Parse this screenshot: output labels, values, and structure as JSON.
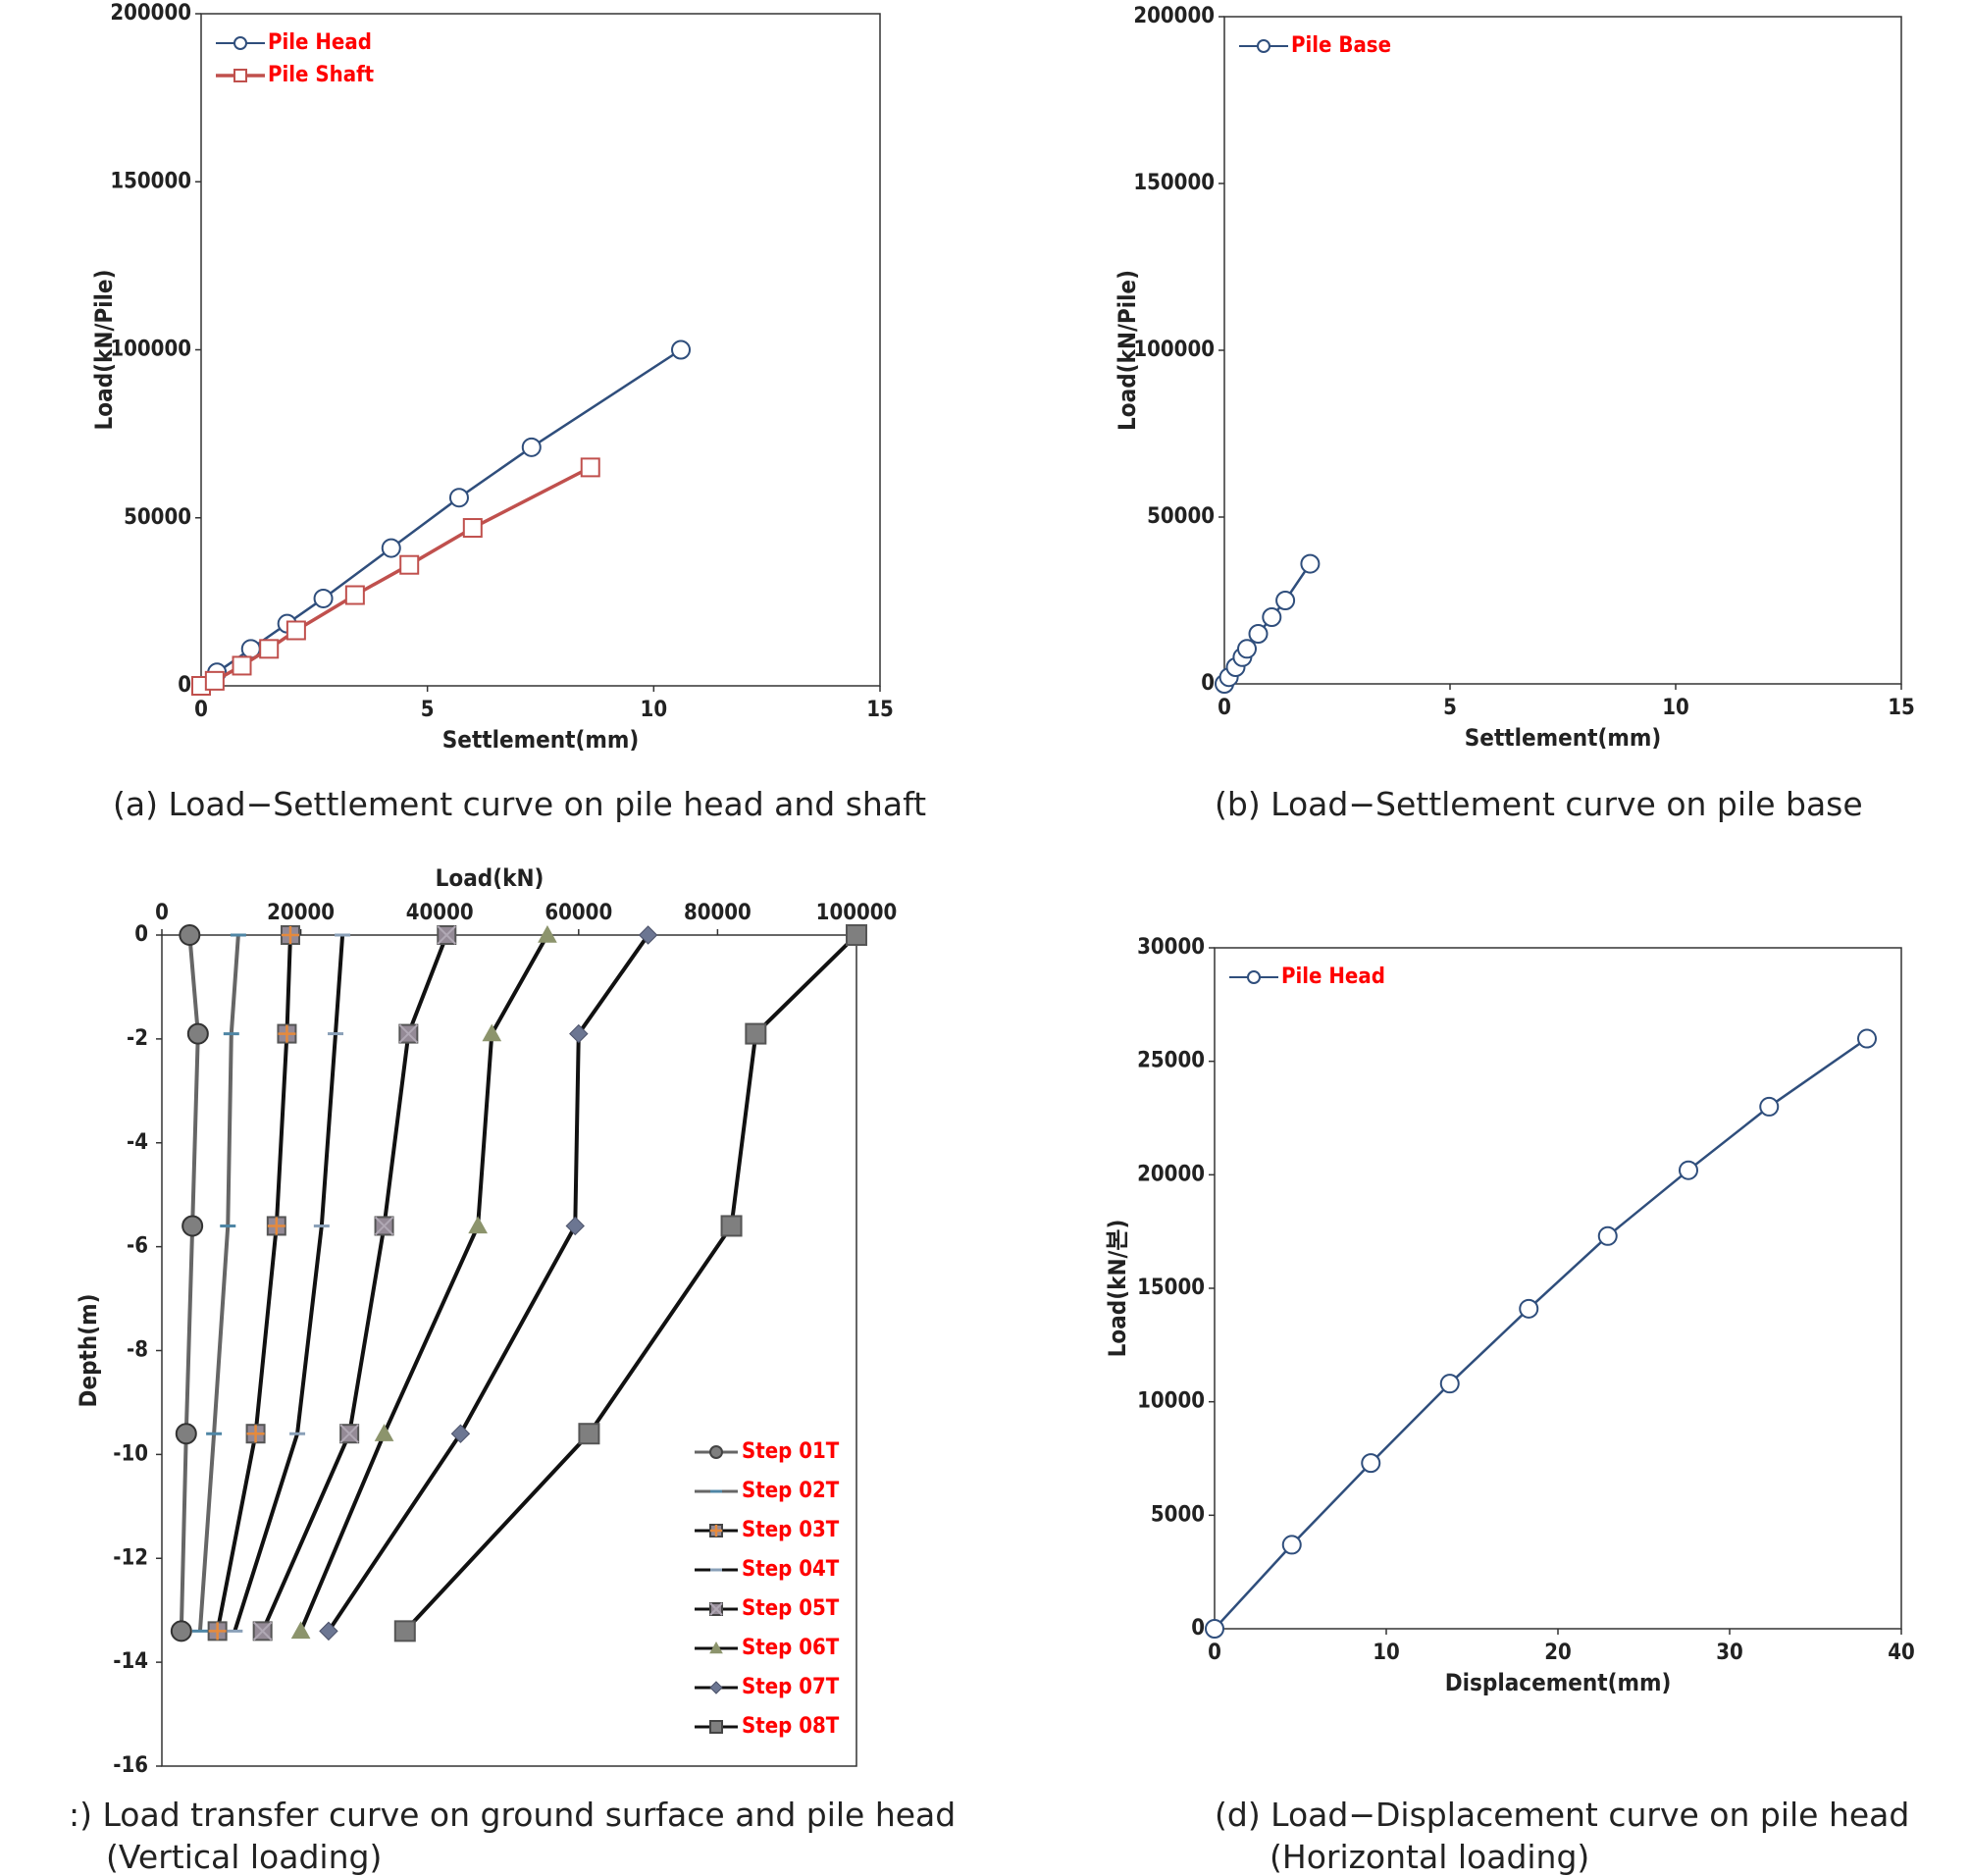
{
  "colors": {
    "blue": "#2f4e7c",
    "red_line": "#c0504d",
    "legend_text": "#ff0000",
    "dark": "#222222",
    "gray_line": "#666666",
    "marker_gray": "#7f7f7f",
    "marker_mauve": "#948a96",
    "marker_olive": "#8c946c",
    "marker_slate": "#6c7692",
    "marker_orange": "#e68a3c",
    "teal": "#4f86a5"
  },
  "captions": {
    "a": "(a) Load−Settlement curve on pile head and shaft",
    "b": "(b) Load−Settlement curve on pile base",
    "c1": ":) Load transfer curve on ground surface and pile head",
    "c2": "(Vertical loading)",
    "d1": "(d) Load−Displacement curve on pile head",
    "d2": "(Horizontal loading)"
  },
  "chart_data": [
    {
      "type": "line",
      "xlabel": "Settlement(mm)",
      "ylabel": "Load(kN/Pile)",
      "xlim": [
        0,
        15
      ],
      "ylim": [
        0,
        200000
      ],
      "xticks": [
        "0",
        "5",
        "10",
        "15"
      ],
      "yticks": [
        "0",
        "50000",
        "100000",
        "150000",
        "200000"
      ],
      "legend_position": "top-left",
      "series": [
        {
          "name": "Pile Head",
          "marker": "circle",
          "color": "#2f4e7c",
          "x": [
            0,
            0.35,
            1.1,
            1.9,
            2.7,
            4.2,
            5.7,
            7.3,
            10.6
          ],
          "y": [
            0,
            4000,
            11000,
            18500,
            26000,
            41000,
            56000,
            71000,
            100000
          ]
        },
        {
          "name": "Pile Shaft",
          "marker": "square",
          "color": "#c0504d",
          "x": [
            0,
            0.3,
            0.9,
            1.5,
            2.1,
            3.4,
            4.6,
            6.0,
            8.6
          ],
          "y": [
            0,
            1500,
            6000,
            11000,
            16500,
            27000,
            36000,
            47000,
            65000
          ]
        }
      ]
    },
    {
      "type": "line",
      "xlabel": "Settlement(mm)",
      "ylabel": "Load(kN/Pile)",
      "xlim": [
        0,
        15
      ],
      "ylim": [
        0,
        200000
      ],
      "xticks": [
        "0",
        "5",
        "10",
        "15"
      ],
      "yticks": [
        "0",
        "50000",
        "100000",
        "150000",
        "200000"
      ],
      "legend_position": "top-left",
      "series": [
        {
          "name": "Pile Base",
          "marker": "circle",
          "color": "#2f4e7c",
          "x": [
            0,
            0.1,
            0.25,
            0.4,
            0.5,
            0.75,
            1.05,
            1.35,
            1.9
          ],
          "y": [
            0,
            2000,
            5000,
            8000,
            10500,
            15000,
            20000,
            25000,
            36000
          ]
        }
      ]
    },
    {
      "type": "line",
      "xlabel": "Load(kN)",
      "ylabel": "Depth(m)",
      "xlim": [
        0,
        100000
      ],
      "ylim": [
        -16,
        0
      ],
      "xticks": [
        "0",
        "20000",
        "40000",
        "60000",
        "80000",
        "100000"
      ],
      "yticks": [
        "0",
        "-2",
        "-4",
        "-6",
        "-8",
        "-10",
        "-12",
        "-14",
        "-16"
      ],
      "legend_position": "bottom-right",
      "depths": [
        0,
        -1.9,
        -5.6,
        -9.6,
        -13.4
      ],
      "series": [
        {
          "name": "Step 01T",
          "marker": "circle",
          "color": "#666666",
          "fill": "#7f7f7f",
          "x": [
            4000,
            5200,
            4400,
            3500,
            2800
          ]
        },
        {
          "name": "Step 02T",
          "marker": "dash",
          "color": "#666666",
          "fill": "#4f86a5",
          "x": [
            11000,
            10000,
            9500,
            7500,
            5500
          ]
        },
        {
          "name": "Step 03T",
          "marker": "squareplus",
          "color": "#111111",
          "fill": "#948a96",
          "x": [
            18500,
            18000,
            16500,
            13500,
            8000
          ]
        },
        {
          "name": "Step 04T",
          "marker": "dash",
          "color": "#111111",
          "fill": "#8aa0b8",
          "x": [
            26000,
            25000,
            23000,
            19500,
            10500
          ]
        },
        {
          "name": "Step 05T",
          "marker": "squarex",
          "color": "#111111",
          "fill": "#948a96",
          "x": [
            41000,
            35500,
            32000,
            27000,
            14500
          ]
        },
        {
          "name": "Step 06T",
          "marker": "triangle",
          "color": "#111111",
          "fill": "#8c946c",
          "x": [
            55500,
            47500,
            45500,
            32000,
            20000
          ]
        },
        {
          "name": "Step 07T",
          "marker": "diamond",
          "color": "#111111",
          "fill": "#6c7692",
          "x": [
            70000,
            60000,
            59500,
            43000,
            24000
          ]
        },
        {
          "name": "Step 08T",
          "marker": "square",
          "color": "#111111",
          "fill": "#7f7f7f",
          "x": [
            100000,
            85500,
            82000,
            61500,
            35000
          ]
        }
      ]
    },
    {
      "type": "line",
      "xlabel": "Displacement(mm)",
      "ylabel": "Load(kN/본)",
      "xlim": [
        0,
        40
      ],
      "ylim": [
        0,
        30000
      ],
      "xticks": [
        "0",
        "10",
        "20",
        "30",
        "40"
      ],
      "yticks": [
        "0",
        "5000",
        "10000",
        "15000",
        "20000",
        "25000",
        "30000"
      ],
      "legend_position": "top-left",
      "series": [
        {
          "name": "Pile Head",
          "marker": "circle",
          "color": "#2f4e7c",
          "x": [
            0,
            4.5,
            9.1,
            13.7,
            18.3,
            22.9,
            27.6,
            32.3,
            38.0
          ],
          "y": [
            0,
            3700,
            7300,
            10800,
            14100,
            17300,
            20200,
            23000,
            26000
          ]
        }
      ]
    }
  ]
}
